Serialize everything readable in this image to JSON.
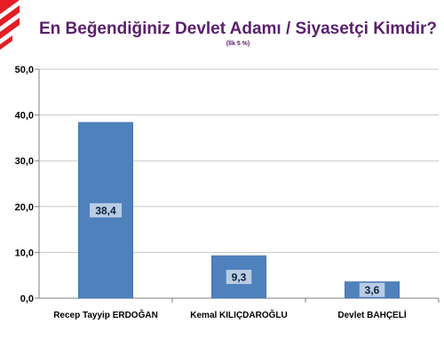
{
  "chart_data": {
    "type": "bar",
    "title": "En Beğendiğiniz Devlet Adamı / Siyasetçi Kimdir?",
    "subtitle": "(İlk 5 %)",
    "categories": [
      "Recep Tayyip ERDOĞAN",
      "Kemal KILIÇDAROĞLU",
      "Devlet BAHÇELİ"
    ],
    "values": [
      38.4,
      9.3,
      3.6
    ],
    "data_labels": [
      "38,4",
      "9,3",
      "3,6"
    ],
    "ylim": [
      0,
      50
    ],
    "yticks": [
      "0,0",
      "10,0",
      "20,0",
      "30,0",
      "40,0",
      "50,0"
    ],
    "ytick_values": [
      0,
      10,
      20,
      30,
      40,
      50
    ],
    "xlabel": "",
    "ylabel": "",
    "grid": true,
    "legend": "none",
    "colors": {
      "bar": "#4f81bd",
      "bar_edge": "#3d6ba3",
      "label_box": "#b8cce4",
      "title": "#5b1f6e",
      "grid": "#c8c8c8",
      "logo": "#e31e24"
    }
  }
}
